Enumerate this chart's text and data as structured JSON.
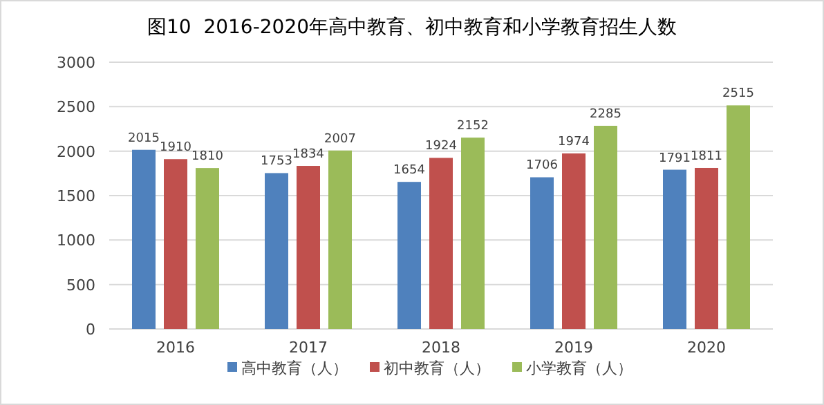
{
  "chart_data": {
    "type": "bar",
    "title": "图10  2016-2020年高中教育、初中教育和小学教育招生人数",
    "categories": [
      "2016",
      "2017",
      "2018",
      "2019",
      "2020"
    ],
    "series": [
      {
        "name": "高中教育（人）",
        "color": "#4f81bd",
        "values": [
          2015,
          1753,
          1654,
          1706,
          1791
        ]
      },
      {
        "name": "初中教育（人）",
        "color": "#c0504d",
        "values": [
          1910,
          1834,
          1924,
          1974,
          1811
        ]
      },
      {
        "name": "小学教育（人）",
        "color": "#9bbb59",
        "values": [
          1810,
          2007,
          2152,
          2285,
          2515
        ]
      }
    ],
    "ylim": [
      0,
      3000
    ],
    "yticks": [
      0,
      500,
      1000,
      1500,
      2000,
      2500,
      3000
    ],
    "grid": "y",
    "legend": "bottom",
    "data_labels": true
  }
}
